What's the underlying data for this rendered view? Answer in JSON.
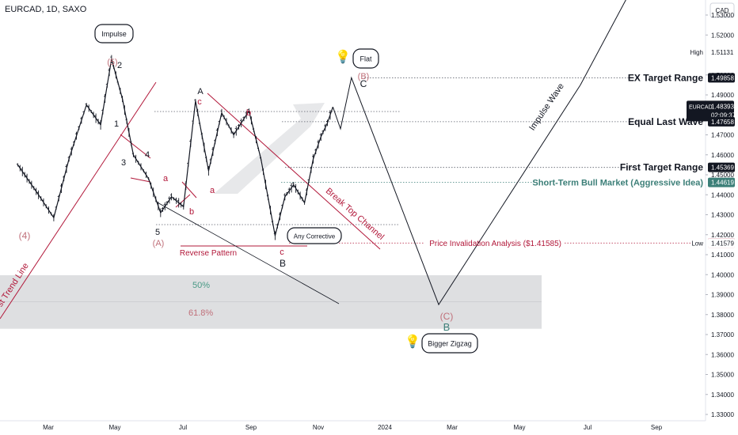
{
  "symbol_title": "EURCAD, 1D, SAXO",
  "currency": "CAD",
  "colors": {
    "bull": "#131722",
    "red": "#b2183a",
    "teal": "#3c7f78",
    "green": "#4a9a86",
    "pink": "#c0707a",
    "grid_dotted": "#5d606b",
    "zone": "#d8d9dc"
  },
  "chart_data": {
    "type": "line",
    "instrument": "EURCAD",
    "timeframe": "1D",
    "x_ticks": [
      "Mar",
      "May",
      "Jul",
      "Sep",
      "Nov",
      "2024",
      "Mar",
      "May",
      "Jul",
      "Sep"
    ],
    "y_ticks": [
      "1.53000",
      "1.52000",
      "1.50000",
      "1.49000",
      "1.48000",
      "1.47000",
      "1.46000",
      "1.45000",
      "1.44000",
      "1.43000",
      "1.42000",
      "1.41000",
      "1.40000",
      "1.39000",
      "1.38000",
      "1.37000",
      "1.36000",
      "1.35000",
      "1.34000",
      "1.33000"
    ],
    "ylim": [
      1.328,
      1.541
    ],
    "price_path": {
      "x": [
        "2023-02-01",
        "2023-02-20",
        "2023-03-06",
        "2023-03-20",
        "2023-04-05",
        "2023-04-18",
        "2023-04-28",
        "2023-05-08",
        "2023-05-18",
        "2023-06-01",
        "2023-06-12",
        "2023-06-22",
        "2023-07-03",
        "2023-07-14",
        "2023-07-26",
        "2023-08-07",
        "2023-08-18",
        "2023-09-01",
        "2023-09-12",
        "2023-09-25",
        "2023-10-04",
        "2023-10-12",
        "2023-10-22",
        "2023-10-30",
        "2023-11-06",
        "2023-11-12",
        "2023-11-17"
      ],
      "y": [
        1.455,
        1.44,
        1.4285,
        1.458,
        1.485,
        1.475,
        1.508,
        1.488,
        1.46,
        1.448,
        1.431,
        1.439,
        1.434,
        1.487,
        1.452,
        1.481,
        1.47,
        1.482,
        1.458,
        1.4195,
        1.439,
        1.445,
        1.436,
        1.458,
        1.469,
        1.476,
        1.484
      ]
    },
    "projection": {
      "x": [
        "2023-11-17",
        "2023-11-24",
        "2023-12-04",
        "2024-02-22",
        "2024-07-01",
        "2024-08-15"
      ],
      "y": [
        1.484,
        1.473,
        1.4986,
        1.385,
        1.495,
        1.541
      ]
    },
    "levels": [
      {
        "label": "EX Target Range",
        "price": "1.49858"
      },
      {
        "label": "Equal Last Wave",
        "price": "1.47658"
      },
      {
        "label": "First Target Range",
        "price": "1.45369"
      },
      {
        "label": "Short-Term Bull Market (Aggressive Idea)",
        "price": "1.44619"
      },
      {
        "label": "Price Invalidation Analysis ($1.41585)",
        "price": "1.41585"
      }
    ],
    "price_badges": [
      {
        "label": "High",
        "price": "1.51131"
      },
      {
        "label": "",
        "price": "1.49858"
      },
      {
        "label": "EURCAD",
        "price": "1.48393",
        "countdown": "02:09:37"
      },
      {
        "label": "",
        "price": "1.47658"
      },
      {
        "label": "",
        "price": "1.45369"
      },
      {
        "label": "",
        "price": "1.44619"
      },
      {
        "label": "",
        "price": "1.41585"
      },
      {
        "label": "Low",
        "price": "1.41579"
      }
    ],
    "fib_labels": [
      "50%",
      "61.8%"
    ],
    "annotations": {
      "impulse": "Impulse",
      "flat": "Flat",
      "any_corrective": "Any Corrective",
      "bigger_zigzag": "Bigger Zigzag",
      "impulse_wave": "Impulse Wave",
      "break_top_channel": "Break Top Channel",
      "reverse_pattern": "Reverse Pattern",
      "trend_line": "st Trend Line"
    },
    "wave_labels": [
      "(4)",
      "A",
      "(5)",
      "2",
      "1",
      "3",
      "4",
      "5",
      "(A)",
      "a",
      "b",
      "A",
      "c",
      "a",
      "b",
      "c",
      "B",
      "(B)",
      "C",
      "(C)",
      "B"
    ],
    "lightbulb_glyph": "💡"
  }
}
